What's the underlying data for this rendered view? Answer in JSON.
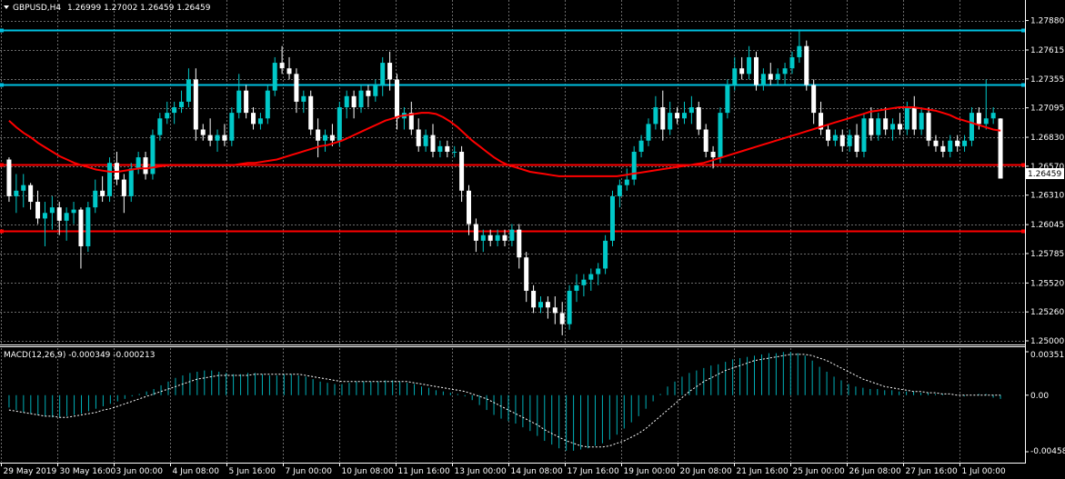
{
  "header": {
    "symbol": "GBPUSD,H4",
    "ohlc": "1.26999 1.27002 1.26459 1.26459"
  },
  "price_axis": {
    "ticks": [
      "1.27880",
      "1.27615",
      "1.27355",
      "1.27095",
      "1.26830",
      "1.26570",
      "1.26310",
      "1.26045",
      "1.25785",
      "1.25520",
      "1.25260",
      "1.25000"
    ],
    "current_label": "1.26459"
  },
  "time_axis": {
    "labels": [
      "29 May 2019",
      "30 May 16:00",
      "3 Jun 00:00",
      "4 Jun 08:00",
      "5 Jun 16:00",
      "7 Jun 00:00",
      "10 Jun 08:00",
      "11 Jun 16:00",
      "13 Jun 00:00",
      "14 Jun 08:00",
      "17 Jun 16:00",
      "19 Jun 00:00",
      "20 Jun 08:00",
      "21 Jun 16:00",
      "25 Jun 00:00",
      "26 Jun 08:00",
      "27 Jun 16:00",
      "1 Jul 00:00"
    ]
  },
  "macd": {
    "label": "MACD(12,26,9) -0.000349 -0.000213",
    "ticks": [
      "0.003517",
      "0.00",
      "-0.004581"
    ]
  },
  "colors": {
    "background": "#000000",
    "grid": "#6b6b6b",
    "bull": "#00c8c8",
    "bear": "#ffffff",
    "ma": "#ff0000",
    "level_line": "#00c0e0",
    "support_line": "#ff0000",
    "macd_hist": "#00b0b8",
    "macd_signal": "#ffffff"
  },
  "chart_data": {
    "type": "candlestick",
    "title": "GBPUSD,H4",
    "ylim": [
      1.25,
      1.2795
    ],
    "horizontal_levels": [
      {
        "price": 1.27795,
        "color": "cyan"
      },
      {
        "price": 1.27305,
        "color": "cyan"
      },
      {
        "price": 1.26585,
        "color": "red"
      },
      {
        "price": 1.25985,
        "color": "red"
      }
    ],
    "candles": [
      [
        1.2663,
        1.2665,
        1.2625,
        1.263
      ],
      [
        1.263,
        1.265,
        1.2615,
        1.2635
      ],
      [
        1.2635,
        1.265,
        1.262,
        1.264
      ],
      [
        1.264,
        1.2642,
        1.2618,
        1.2625
      ],
      [
        1.2625,
        1.2635,
        1.2605,
        1.261
      ],
      [
        1.261,
        1.2625,
        1.2585,
        1.2615
      ],
      [
        1.2615,
        1.263,
        1.26,
        1.262
      ],
      [
        1.262,
        1.2625,
        1.2595,
        1.2608
      ],
      [
        1.2608,
        1.262,
        1.259,
        1.2615
      ],
      [
        1.2615,
        1.2625,
        1.2605,
        1.2618
      ],
      [
        1.2618,
        1.262,
        1.2565,
        1.2585
      ],
      [
        1.2585,
        1.2625,
        1.258,
        1.262
      ],
      [
        1.262,
        1.2645,
        1.2615,
        1.2635
      ],
      [
        1.2635,
        1.2648,
        1.2625,
        1.263
      ],
      [
        1.263,
        1.2665,
        1.2625,
        1.266
      ],
      [
        1.266,
        1.267,
        1.264,
        1.2645
      ],
      [
        1.2645,
        1.265,
        1.2615,
        1.263
      ],
      [
        1.263,
        1.266,
        1.2625,
        1.2655
      ],
      [
        1.2655,
        1.267,
        1.265,
        1.2665
      ],
      [
        1.2665,
        1.267,
        1.2645,
        1.265
      ],
      [
        1.265,
        1.269,
        1.2645,
        1.2685
      ],
      [
        1.2685,
        1.2705,
        1.268,
        1.27
      ],
      [
        1.27,
        1.2715,
        1.2695,
        1.2705
      ],
      [
        1.2705,
        1.2715,
        1.2695,
        1.271
      ],
      [
        1.271,
        1.2725,
        1.2705,
        1.2715
      ],
      [
        1.2715,
        1.2745,
        1.271,
        1.2735
      ],
      [
        1.2735,
        1.2745,
        1.268,
        1.269
      ],
      [
        1.269,
        1.2695,
        1.268,
        1.2685
      ],
      [
        1.2685,
        1.27,
        1.2675,
        1.268
      ],
      [
        1.268,
        1.269,
        1.267,
        1.2685
      ],
      [
        1.2685,
        1.2695,
        1.2675,
        1.268
      ],
      [
        1.268,
        1.271,
        1.2675,
        1.2705
      ],
      [
        1.2705,
        1.274,
        1.27,
        1.2725
      ],
      [
        1.2725,
        1.273,
        1.27,
        1.2705
      ],
      [
        1.2705,
        1.271,
        1.269,
        1.2695
      ],
      [
        1.2695,
        1.2705,
        1.269,
        1.27
      ],
      [
        1.27,
        1.273,
        1.2695,
        1.2725
      ],
      [
        1.2725,
        1.2755,
        1.272,
        1.275
      ],
      [
        1.275,
        1.2765,
        1.274,
        1.2745
      ],
      [
        1.2745,
        1.2755,
        1.2735,
        1.274
      ],
      [
        1.274,
        1.2745,
        1.2705,
        1.2715
      ],
      [
        1.2715,
        1.2725,
        1.2705,
        1.272
      ],
      [
        1.272,
        1.2725,
        1.2685,
        1.269
      ],
      [
        1.269,
        1.27,
        1.2665,
        1.268
      ],
      [
        1.268,
        1.269,
        1.267,
        1.2685
      ],
      [
        1.2685,
        1.2695,
        1.2675,
        1.268
      ],
      [
        1.268,
        1.2715,
        1.2675,
        1.271
      ],
      [
        1.271,
        1.2725,
        1.27,
        1.272
      ],
      [
        1.272,
        1.2725,
        1.27,
        1.271
      ],
      [
        1.271,
        1.273,
        1.2705,
        1.2725
      ],
      [
        1.2725,
        1.273,
        1.271,
        1.272
      ],
      [
        1.272,
        1.2735,
        1.2715,
        1.273
      ],
      [
        1.273,
        1.2755,
        1.272,
        1.275
      ],
      [
        1.275,
        1.276,
        1.2725,
        1.2735
      ],
      [
        1.2735,
        1.274,
        1.269,
        1.27
      ],
      [
        1.27,
        1.271,
        1.269,
        1.2705
      ],
      [
        1.2705,
        1.2715,
        1.2685,
        1.269
      ],
      [
        1.269,
        1.27,
        1.267,
        1.2675
      ],
      [
        1.2675,
        1.269,
        1.267,
        1.2685
      ],
      [
        1.2685,
        1.2695,
        1.2665,
        1.267
      ],
      [
        1.267,
        1.268,
        1.2665,
        1.2675
      ],
      [
        1.2675,
        1.268,
        1.2665,
        1.267
      ],
      [
        1.267,
        1.2675,
        1.2665,
        1.267
      ],
      [
        1.267,
        1.2675,
        1.2625,
        1.2635
      ],
      [
        1.2635,
        1.264,
        1.2595,
        1.2605
      ],
      [
        1.2605,
        1.261,
        1.258,
        1.259
      ],
      [
        1.259,
        1.26,
        1.258,
        1.2595
      ],
      [
        1.2595,
        1.26,
        1.2585,
        1.259
      ],
      [
        1.259,
        1.26,
        1.2585,
        1.2595
      ],
      [
        1.2595,
        1.26,
        1.2585,
        1.259
      ],
      [
        1.259,
        1.2605,
        1.2585,
        1.26
      ],
      [
        1.26,
        1.2605,
        1.2565,
        1.2575
      ],
      [
        1.2575,
        1.258,
        1.2535,
        1.2545
      ],
      [
        1.2545,
        1.255,
        1.2525,
        1.253
      ],
      [
        1.253,
        1.254,
        1.2525,
        1.2535
      ],
      [
        1.2535,
        1.254,
        1.252,
        1.253
      ],
      [
        1.253,
        1.254,
        1.2515,
        1.2525
      ],
      [
        1.2525,
        1.2535,
        1.2505,
        1.2515
      ],
      [
        1.2515,
        1.255,
        1.251,
        1.2545
      ],
      [
        1.2545,
        1.256,
        1.2535,
        1.255
      ],
      [
        1.255,
        1.256,
        1.254,
        1.2555
      ],
      [
        1.2555,
        1.2565,
        1.2545,
        1.256
      ],
      [
        1.256,
        1.257,
        1.255,
        1.2565
      ],
      [
        1.2565,
        1.2595,
        1.256,
        1.259
      ],
      [
        1.259,
        1.2635,
        1.2585,
        1.263
      ],
      [
        1.263,
        1.2645,
        1.262,
        1.264
      ],
      [
        1.264,
        1.2655,
        1.2635,
        1.2645
      ],
      [
        1.2645,
        1.2675,
        1.264,
        1.267
      ],
      [
        1.267,
        1.2685,
        1.2665,
        1.268
      ],
      [
        1.268,
        1.27,
        1.2675,
        1.2695
      ],
      [
        1.2695,
        1.272,
        1.269,
        1.271
      ],
      [
        1.271,
        1.2725,
        1.268,
        1.269
      ],
      [
        1.269,
        1.2715,
        1.2685,
        1.2705
      ],
      [
        1.2705,
        1.271,
        1.2695,
        1.27
      ],
      [
        1.27,
        1.2715,
        1.2695,
        1.2705
      ],
      [
        1.2705,
        1.272,
        1.2695,
        1.271
      ],
      [
        1.271,
        1.2715,
        1.2685,
        1.269
      ],
      [
        1.269,
        1.2695,
        1.2665,
        1.267
      ],
      [
        1.267,
        1.2675,
        1.2655,
        1.2665
      ],
      [
        1.2665,
        1.271,
        1.266,
        1.2705
      ],
      [
        1.2705,
        1.2735,
        1.27,
        1.273
      ],
      [
        1.273,
        1.2755,
        1.2725,
        1.2745
      ],
      [
        1.2745,
        1.2755,
        1.2735,
        1.274
      ],
      [
        1.274,
        1.2765,
        1.2735,
        1.2755
      ],
      [
        1.2755,
        1.276,
        1.2725,
        1.273
      ],
      [
        1.273,
        1.2745,
        1.2725,
        1.274
      ],
      [
        1.274,
        1.275,
        1.273,
        1.2735
      ],
      [
        1.2735,
        1.2745,
        1.273,
        1.274
      ],
      [
        1.274,
        1.275,
        1.273,
        1.2745
      ],
      [
        1.2745,
        1.276,
        1.274,
        1.2755
      ],
      [
        1.2755,
        1.278,
        1.275,
        1.2765
      ],
      [
        1.2765,
        1.277,
        1.2725,
        1.273
      ],
      [
        1.273,
        1.2735,
        1.2695,
        1.2705
      ],
      [
        1.2705,
        1.2715,
        1.2685,
        1.269
      ],
      [
        1.269,
        1.2695,
        1.2675,
        1.268
      ],
      [
        1.268,
        1.269,
        1.2675,
        1.2685
      ],
      [
        1.2685,
        1.269,
        1.267,
        1.2675
      ],
      [
        1.2675,
        1.269,
        1.267,
        1.2685
      ],
      [
        1.2685,
        1.2695,
        1.2665,
        1.267
      ],
      [
        1.267,
        1.2705,
        1.2665,
        1.27
      ],
      [
        1.27,
        1.271,
        1.268,
        1.2685
      ],
      [
        1.2685,
        1.2705,
        1.268,
        1.27
      ],
      [
        1.27,
        1.271,
        1.2685,
        1.269
      ],
      [
        1.269,
        1.27,
        1.268,
        1.2695
      ],
      [
        1.2695,
        1.2705,
        1.2685,
        1.269
      ],
      [
        1.269,
        1.2715,
        1.2685,
        1.271
      ],
      [
        1.271,
        1.272,
        1.2685,
        1.269
      ],
      [
        1.269,
        1.271,
        1.2685,
        1.2705
      ],
      [
        1.2705,
        1.271,
        1.2675,
        1.268
      ],
      [
        1.268,
        1.2685,
        1.267,
        1.2675
      ],
      [
        1.2675,
        1.268,
        1.2665,
        1.267
      ],
      [
        1.267,
        1.2685,
        1.2665,
        1.268
      ],
      [
        1.268,
        1.2685,
        1.267,
        1.2675
      ],
      [
        1.2675,
        1.2685,
        1.267,
        1.268
      ],
      [
        1.268,
        1.271,
        1.2675,
        1.2705
      ],
      [
        1.2705,
        1.271,
        1.269,
        1.2695
      ],
      [
        1.2695,
        1.2735,
        1.269,
        1.27
      ],
      [
        1.27,
        1.271,
        1.2695,
        1.2705
      ],
      [
        1.26999,
        1.27002,
        1.26459,
        1.26459
      ]
    ],
    "moving_average": [
      1.2698,
      1.2692,
      1.2687,
      1.2683,
      1.2678,
      1.2674,
      1.267,
      1.2666,
      1.2663,
      1.266,
      1.2658,
      1.2656,
      1.2654,
      1.2653,
      1.2652,
      1.2652,
      1.2653,
      1.2654,
      1.2655,
      1.2655,
      1.2656,
      1.2657,
      1.2658,
      1.2658,
      1.2658,
      1.2658,
      1.2658,
      1.2658,
      1.2658,
      1.2658,
      1.2658,
      1.2658,
      1.2659,
      1.266,
      1.266,
      1.2661,
      1.2662,
      1.2663,
      1.2665,
      1.2667,
      1.2669,
      1.2671,
      1.2673,
      1.2675,
      1.2676,
      1.2678,
      1.268,
      1.2683,
      1.2686,
      1.2689,
      1.2692,
      1.2695,
      1.2698,
      1.27,
      1.2702,
      1.2703,
      1.2704,
      1.2705,
      1.2705,
      1.2704,
      1.2701,
      1.2697,
      1.2692,
      1.2686,
      1.268,
      1.2675,
      1.267,
      1.2665,
      1.2661,
      1.2658,
      1.2656,
      1.2654,
      1.2652,
      1.2651,
      1.265,
      1.2649,
      1.2648,
      1.2648,
      1.2648,
      1.2648,
      1.2648,
      1.2648,
      1.2648,
      1.2648,
      1.2648,
      1.2649,
      1.265,
      1.2651,
      1.2652,
      1.2653,
      1.2654,
      1.2655,
      1.2656,
      1.2657,
      1.2658,
      1.2659,
      1.266,
      1.2662,
      1.2664,
      1.2666,
      1.2668,
      1.267,
      1.2672,
      1.2674,
      1.2676,
      1.2678,
      1.268,
      1.2682,
      1.2684,
      1.2686,
      1.2688,
      1.269,
      1.2692,
      1.2694,
      1.2696,
      1.2698,
      1.27,
      1.2702,
      1.2704,
      1.2706,
      1.2707,
      1.2708,
      1.2709,
      1.271,
      1.271,
      1.271,
      1.2709,
      1.2708,
      1.2707,
      1.2705,
      1.2703,
      1.27,
      1.2698,
      1.2696,
      1.2694,
      1.2692,
      1.269,
      1.2689
    ],
    "macd": {
      "ylim": [
        -0.004581,
        0.003517
      ],
      "histogram": [
        -0.001,
        -0.0012,
        -0.0014,
        -0.0015,
        -0.0016,
        -0.0017,
        -0.0018,
        -0.0018,
        -0.0017,
        -0.0016,
        -0.0015,
        -0.0013,
        -0.0011,
        -0.0009,
        -0.0007,
        -0.0005,
        -0.0003,
        -0.0001,
        0.0001,
        0.0003,
        0.0005,
        0.0008,
        0.0011,
        0.0014,
        0.0016,
        0.0018,
        0.0019,
        0.002,
        0.002,
        0.0019,
        0.0018,
        0.0017,
        0.0017,
        0.0018,
        0.0018,
        0.0017,
        0.0016,
        0.0016,
        0.0017,
        0.0017,
        0.0016,
        0.0015,
        0.0013,
        0.0011,
        0.001,
        0.0009,
        0.0009,
        0.001,
        0.0011,
        0.0011,
        0.0011,
        0.0011,
        0.0012,
        0.0012,
        0.0011,
        0.001,
        0.0009,
        0.0007,
        0.0006,
        0.0004,
        0.0003,
        0.0002,
        0.0001,
        -0.0001,
        -0.0004,
        -0.0008,
        -0.0012,
        -0.0016,
        -0.0019,
        -0.0021,
        -0.0023,
        -0.0026,
        -0.0029,
        -0.0033,
        -0.0037,
        -0.004,
        -0.0043,
        -0.0045,
        -0.0045,
        -0.0044,
        -0.0043,
        -0.0041,
        -0.0039,
        -0.0036,
        -0.0032,
        -0.0027,
        -0.0022,
        -0.0017,
        -0.0011,
        -0.0005,
        0.0001,
        0.0007,
        0.0011,
        0.0015,
        0.0018,
        0.002,
        0.0022,
        0.0024,
        0.0025,
        0.0027,
        0.0029,
        0.003,
        0.0031,
        0.0032,
        0.0033,
        0.0034,
        0.0034,
        0.0035,
        0.0035,
        0.0034,
        0.0032,
        0.0028,
        0.0023,
        0.0019,
        0.0015,
        0.0012,
        0.0009,
        0.0007,
        0.0006,
        0.0005,
        0.0005,
        0.0004,
        0.0004,
        0.0003,
        0.0003,
        0.0003,
        0.0002,
        0.0002,
        0.0001,
        0.0001,
        0.0,
        0.0,
        -0.0001,
        0.0,
        0.0001,
        0.0001,
        -0.0002,
        -0.0003
      ],
      "signal": [
        -0.0012,
        -0.0013,
        -0.0014,
        -0.0015,
        -0.0016,
        -0.0017,
        -0.0017,
        -0.0018,
        -0.0018,
        -0.0017,
        -0.0016,
        -0.0015,
        -0.0014,
        -0.0012,
        -0.0011,
        -0.0009,
        -0.0007,
        -0.0005,
        -0.0003,
        -0.0001,
        0.0001,
        0.0003,
        0.0005,
        0.0007,
        0.0009,
        0.0011,
        0.0013,
        0.0014,
        0.0015,
        0.0016,
        0.0016,
        0.0016,
        0.0016,
        0.0016,
        0.0017,
        0.0017,
        0.0017,
        0.0017,
        0.0017,
        0.0017,
        0.0017,
        0.0016,
        0.0015,
        0.0014,
        0.0013,
        0.0012,
        0.0011,
        0.0011,
        0.0011,
        0.0011,
        0.0011,
        0.0011,
        0.0011,
        0.0011,
        0.0011,
        0.0011,
        0.001,
        0.0009,
        0.0008,
        0.0007,
        0.0006,
        0.0005,
        0.0004,
        0.0003,
        0.0001,
        -0.0001,
        -0.0003,
        -0.0006,
        -0.0009,
        -0.0012,
        -0.0015,
        -0.0018,
        -0.0021,
        -0.0024,
        -0.0028,
        -0.0031,
        -0.0034,
        -0.0037,
        -0.0039,
        -0.0041,
        -0.0042,
        -0.0042,
        -0.0042,
        -0.0041,
        -0.0039,
        -0.0037,
        -0.0034,
        -0.0031,
        -0.0027,
        -0.0022,
        -0.0017,
        -0.0012,
        -0.0007,
        -0.0002,
        0.0003,
        0.0007,
        0.0011,
        0.0014,
        0.0017,
        0.002,
        0.0022,
        0.0024,
        0.0026,
        0.0028,
        0.0029,
        0.003,
        0.0031,
        0.0032,
        0.0033,
        0.0033,
        0.0033,
        0.0032,
        0.003,
        0.0028,
        0.0025,
        0.0022,
        0.0019,
        0.0016,
        0.0013,
        0.0011,
        0.0009,
        0.0007,
        0.0006,
        0.0005,
        0.0004,
        0.0003,
        0.0003,
        0.0002,
        0.0002,
        0.0001,
        0.0001,
        0.0,
        0.0,
        0.0,
        0.0,
        0.0,
        0.0,
        0.0
      ]
    }
  }
}
